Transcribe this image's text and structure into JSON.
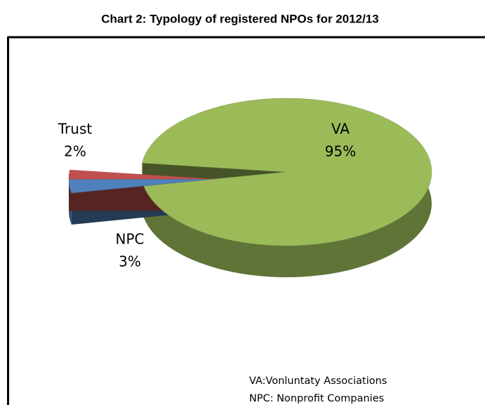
{
  "chart_data": {
    "type": "pie",
    "title": "Chart 2: Typology of registered NPOs for 2012/13",
    "categories": [
      "VA",
      "NPC",
      "Trust"
    ],
    "values": [
      95,
      3,
      2
    ],
    "value_labels": [
      "95%",
      "3%",
      "2%"
    ],
    "colors": [
      "#9bbb59",
      "#4f81bd",
      "#c0504d"
    ],
    "annotations": [
      "VA:Vonluntaty Associations",
      "NPC: Nonprofit Companies"
    ]
  }
}
